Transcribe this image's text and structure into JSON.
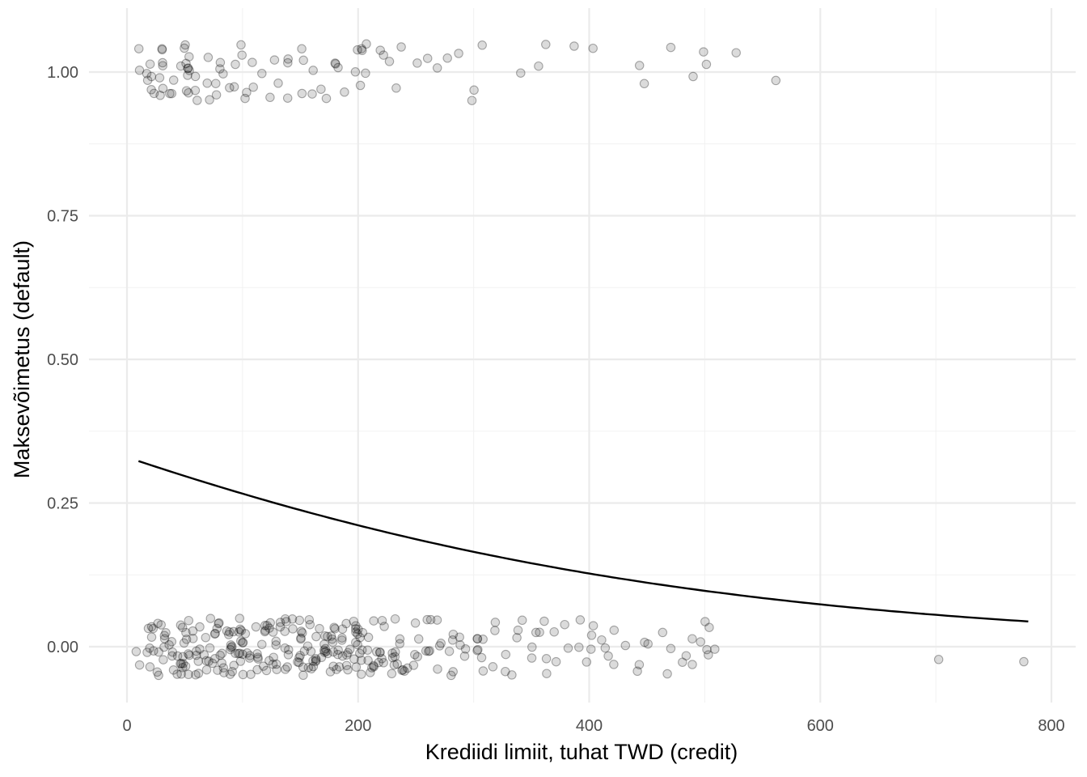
{
  "chart_data": {
    "type": "scatter",
    "xlabel": "Krediidi limiit, tuhat TWD (credit)",
    "ylabel": "Maksevõimetus (default)",
    "xlim": [
      -5,
      820
    ],
    "ylim": [
      -0.1,
      1.1
    ],
    "x_ticks": [
      0,
      200,
      400,
      600,
      800
    ],
    "x_tick_labels": [
      "0",
      "200",
      "400",
      "600",
      "800"
    ],
    "y_ticks": [
      0,
      0.25,
      0.5,
      0.75,
      1.0
    ],
    "y_tick_labels": [
      "0.00",
      "0.25",
      "0.50",
      "0.75",
      "1.00"
    ],
    "grid": true,
    "legend": "none",
    "point_color": "#000000",
    "point_alpha": 0.15,
    "line_color": "#000000",
    "jitter_height": 0.05,
    "points_default_1_x": [
      10,
      10,
      20,
      20,
      20,
      20,
      20,
      20,
      30,
      30,
      30,
      30,
      30,
      30,
      30,
      40,
      40,
      40,
      50,
      50,
      50,
      50,
      50,
      50,
      50,
      50,
      50,
      50,
      50,
      60,
      60,
      60,
      70,
      70,
      70,
      80,
      80,
      80,
      80,
      80,
      90,
      90,
      90,
      100,
      100,
      100,
      100,
      110,
      110,
      120,
      120,
      130,
      130,
      140,
      140,
      140,
      150,
      150,
      150,
      160,
      160,
      170,
      170,
      180,
      180,
      180,
      190,
      200,
      200,
      200,
      200,
      200,
      210,
      210,
      220,
      220,
      230,
      230,
      240,
      250,
      260,
      270,
      280,
      290,
      300,
      300,
      310,
      340,
      360,
      360,
      390,
      400,
      440,
      450,
      470,
      490,
      500,
      500,
      530,
      560
    ],
    "points_default_0_x": [
      10,
      10,
      20,
      20,
      20,
      20,
      20,
      20,
      20,
      20,
      30,
      30,
      30,
      30,
      30,
      30,
      30,
      30,
      30,
      30,
      40,
      40,
      40,
      40,
      40,
      40,
      40,
      50,
      50,
      50,
      50,
      50,
      50,
      50,
      50,
      50,
      50,
      50,
      50,
      50,
      50,
      50,
      50,
      60,
      60,
      60,
      60,
      60,
      60,
      60,
      60,
      60,
      70,
      70,
      70,
      70,
      70,
      70,
      70,
      70,
      80,
      80,
      80,
      80,
      80,
      80,
      80,
      80,
      80,
      80,
      80,
      80,
      90,
      90,
      90,
      90,
      90,
      90,
      90,
      90,
      90,
      90,
      90,
      90,
      100,
      100,
      100,
      100,
      100,
      100,
      100,
      100,
      100,
      100,
      100,
      100,
      100,
      100,
      110,
      110,
      110,
      110,
      110,
      110,
      110,
      110,
      120,
      120,
      120,
      120,
      120,
      120,
      120,
      120,
      120,
      120,
      130,
      130,
      130,
      130,
      130,
      130,
      130,
      130,
      130,
      140,
      140,
      140,
      140,
      140,
      140,
      140,
      140,
      140,
      140,
      150,
      150,
      150,
      150,
      150,
      150,
      150,
      150,
      150,
      150,
      150,
      150,
      160,
      160,
      160,
      160,
      160,
      160,
      160,
      160,
      160,
      160,
      160,
      160,
      170,
      170,
      170,
      170,
      170,
      170,
      170,
      170,
      170,
      170,
      180,
      180,
      180,
      180,
      180,
      180,
      180,
      180,
      180,
      180,
      180,
      180,
      190,
      190,
      190,
      190,
      190,
      190,
      190,
      190,
      190,
      190,
      200,
      200,
      200,
      200,
      200,
      200,
      200,
      200,
      200,
      200,
      200,
      200,
      200,
      200,
      200,
      200,
      210,
      210,
      210,
      210,
      210,
      210,
      210,
      210,
      220,
      220,
      220,
      220,
      220,
      220,
      220,
      220,
      230,
      230,
      230,
      230,
      230,
      230,
      230,
      230,
      240,
      240,
      240,
      240,
      240,
      240,
      250,
      250,
      250,
      250,
      250,
      260,
      260,
      260,
      260,
      260,
      270,
      270,
      270,
      270,
      280,
      280,
      280,
      280,
      280,
      290,
      290,
      290,
      290,
      300,
      300,
      300,
      300,
      310,
      310,
      310,
      320,
      320,
      320,
      330,
      330,
      330,
      340,
      340,
      340,
      350,
      350,
      350,
      360,
      360,
      360,
      360,
      370,
      370,
      380,
      380,
      390,
      390,
      400,
      400,
      400,
      400,
      410,
      410,
      420,
      420,
      420,
      430,
      440,
      440,
      450,
      450,
      460,
      470,
      470,
      480,
      480,
      490,
      490,
      500,
      500,
      500,
      500,
      500,
      510,
      700,
      780
    ]
  }
}
